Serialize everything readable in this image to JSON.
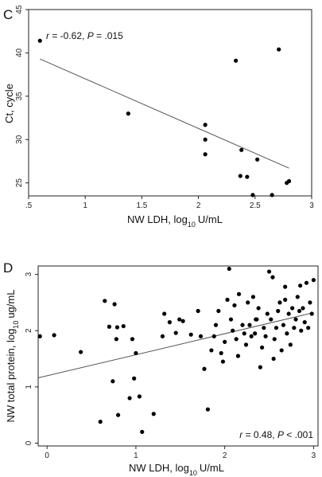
{
  "chart_data": [
    {
      "type": "scatter",
      "panel": "C",
      "xlabel": "NW LDH, log",
      "xlabel_sub": "10",
      "xlabel_unit": "U/mL",
      "ylabel": "Ct, cycle",
      "xlim": [
        0.5,
        3.0
      ],
      "ylim": [
        23.5,
        45
      ],
      "xticks": [
        0.5,
        1,
        1.5,
        2,
        2.5,
        3
      ],
      "xtick_labels": [
        ".5",
        "1",
        "1.5",
        "2",
        "2.5",
        "3"
      ],
      "yticks": [
        25,
        30,
        35,
        40,
        45
      ],
      "ytick_labels": [
        "25",
        "30",
        "35",
        "40",
        "45"
      ],
      "annotation": {
        "r": "-0.62",
        "p": ".015",
        "r_prefix": "r",
        "r_eq": " = -0.62, ",
        "p_prefix": "P",
        "p_eq": " = .015"
      },
      "fit": {
        "x": [
          0.6,
          2.8
        ],
        "y": [
          39.3,
          26.7
        ]
      },
      "points": [
        [
          0.6,
          41.4
        ],
        [
          1.38,
          33.0
        ],
        [
          2.06,
          31.7
        ],
        [
          2.06,
          30.0
        ],
        [
          2.06,
          28.3
        ],
        [
          2.33,
          39.1
        ],
        [
          2.37,
          25.8
        ],
        [
          2.38,
          28.8
        ],
        [
          2.43,
          25.7
        ],
        [
          2.48,
          23.6
        ],
        [
          2.52,
          27.7
        ],
        [
          2.65,
          23.6
        ],
        [
          2.71,
          40.4
        ],
        [
          2.78,
          25.0
        ],
        [
          2.8,
          25.2
        ]
      ]
    },
    {
      "type": "scatter",
      "panel": "D",
      "xlabel": "NW LDH, log",
      "xlabel_sub": "10",
      "xlabel_unit": "U/mL",
      "ylabel": "NW total protein, log",
      "ylabel_sub": "10",
      "ylabel_unit": "ug/mL",
      "xlim": [
        -0.1,
        3.05
      ],
      "ylim": [
        -0.05,
        3.15
      ],
      "xticks": [
        0,
        1,
        2,
        3
      ],
      "xtick_labels": [
        "0",
        "1",
        "2",
        "3"
      ],
      "yticks": [
        0,
        1,
        2,
        3
      ],
      "ytick_labels": [
        "0",
        "1",
        "2",
        "3"
      ],
      "annotation": {
        "r_prefix": "r",
        "r_eq": " = 0.48, ",
        "p_prefix": "P",
        "p_eq": " < .001"
      },
      "fit": {
        "x": [
          -0.1,
          3.0
        ],
        "y": [
          1.16,
          2.32
        ]
      },
      "points": [
        [
          -0.08,
          1.9
        ],
        [
          0.08,
          1.92
        ],
        [
          0.38,
          1.62
        ],
        [
          0.6,
          0.38
        ],
        [
          0.65,
          2.53
        ],
        [
          0.7,
          2.07
        ],
        [
          0.74,
          1.1
        ],
        [
          0.76,
          2.47
        ],
        [
          0.78,
          1.85
        ],
        [
          0.79,
          2.06
        ],
        [
          0.8,
          0.5
        ],
        [
          0.86,
          2.08
        ],
        [
          0.93,
          0.8
        ],
        [
          0.96,
          1.85
        ],
        [
          0.98,
          1.15
        ],
        [
          1.0,
          1.6
        ],
        [
          1.04,
          0.83
        ],
        [
          1.07,
          0.2
        ],
        [
          1.2,
          0.52
        ],
        [
          1.3,
          1.9
        ],
        [
          1.32,
          2.3
        ],
        [
          1.38,
          2.15
        ],
        [
          1.45,
          1.96
        ],
        [
          1.49,
          2.2
        ],
        [
          1.53,
          2.17
        ],
        [
          1.62,
          1.93
        ],
        [
          1.7,
          2.35
        ],
        [
          1.73,
          1.9
        ],
        [
          1.77,
          1.32
        ],
        [
          1.81,
          0.6
        ],
        [
          1.85,
          1.65
        ],
        [
          1.88,
          1.9
        ],
        [
          1.9,
          2.1
        ],
        [
          1.93,
          2.35
        ],
        [
          1.96,
          1.6
        ],
        [
          1.98,
          1.45
        ],
        [
          2.0,
          1.8
        ],
        [
          2.03,
          2.55
        ],
        [
          2.05,
          3.1
        ],
        [
          2.07,
          2.2
        ],
        [
          2.09,
          2.0
        ],
        [
          2.11,
          2.45
        ],
        [
          2.13,
          1.85
        ],
        [
          2.16,
          2.65
        ],
        [
          2.2,
          2.1
        ],
        [
          2.22,
          1.95
        ],
        [
          2.24,
          1.75
        ],
        [
          2.26,
          2.5
        ],
        [
          2.28,
          2.1
        ],
        [
          2.3,
          1.9
        ],
        [
          2.32,
          2.6
        ],
        [
          2.34,
          1.95
        ],
        [
          2.36,
          2.2
        ],
        [
          2.38,
          2.4
        ],
        [
          2.4,
          1.35
        ],
        [
          2.42,
          1.7
        ],
        [
          2.44,
          2.05
        ],
        [
          2.46,
          1.9
        ],
        [
          2.48,
          2.3
        ],
        [
          2.5,
          3.05
        ],
        [
          2.52,
          2.2
        ],
        [
          2.54,
          2.95
        ],
        [
          2.56,
          1.85
        ],
        [
          2.58,
          2.05
        ],
        [
          2.6,
          2.35
        ],
        [
          2.62,
          2.5
        ],
        [
          2.64,
          1.65
        ],
        [
          2.66,
          2.1
        ],
        [
          2.68,
          2.55
        ],
        [
          2.7,
          1.95
        ],
        [
          2.72,
          2.3
        ],
        [
          2.74,
          1.75
        ],
        [
          2.76,
          2.4
        ],
        [
          2.78,
          2.05
        ],
        [
          2.8,
          2.2
        ],
        [
          2.82,
          2.6
        ],
        [
          2.84,
          2.35
        ],
        [
          2.86,
          2.0
        ],
        [
          2.88,
          2.4
        ],
        [
          2.9,
          2.15
        ],
        [
          2.92,
          2.85
        ],
        [
          2.94,
          2.05
        ],
        [
          2.96,
          2.5
        ],
        [
          2.98,
          2.3
        ],
        [
          3.0,
          2.9
        ],
        [
          2.68,
          2.78
        ],
        [
          2.85,
          2.8
        ],
        [
          2.55,
          1.5
        ],
        [
          2.35,
          2.2
        ],
        [
          2.15,
          1.55
        ]
      ]
    }
  ]
}
